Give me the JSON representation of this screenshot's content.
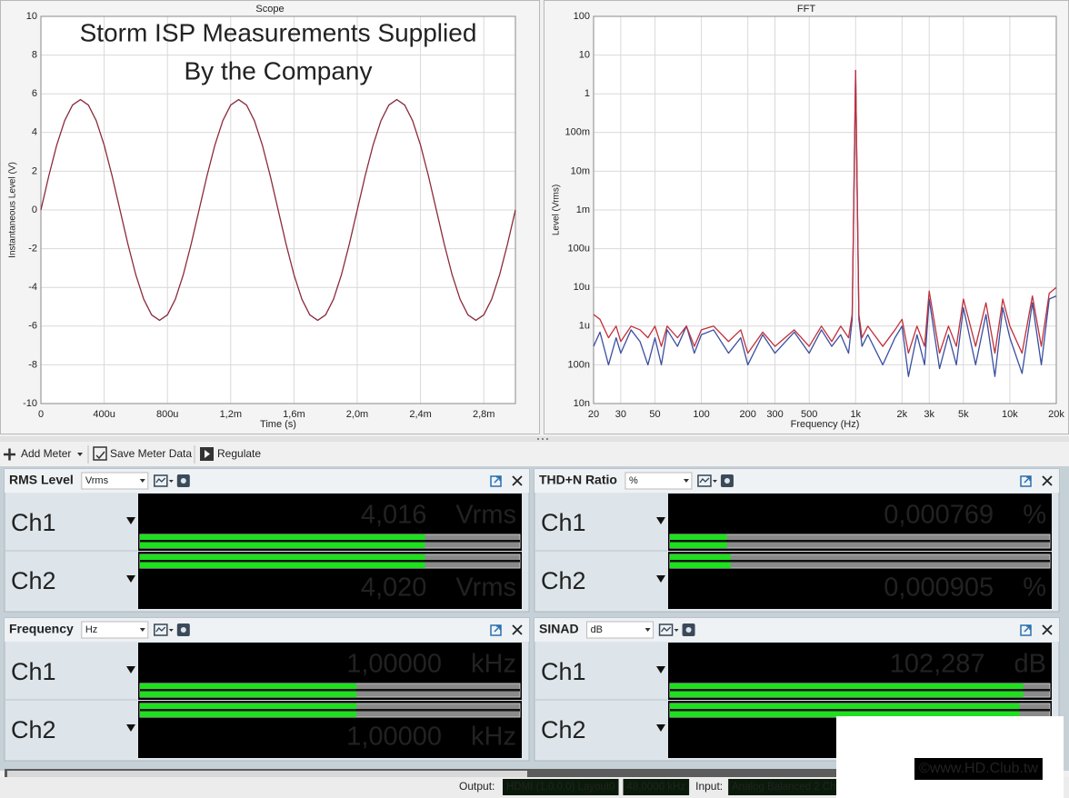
{
  "chart_data": [
    {
      "type": "line",
      "title": "Scope",
      "x_label": "Time (s)",
      "y_label": "Instantaneous Level (V)",
      "annotation": [
        "Storm ISP Measurements Supplied",
        "By the Company"
      ],
      "annotation_color": "#e8141c",
      "x": [
        0,
        5e-05,
        0.0001,
        0.00015,
        0.0002,
        0.00025,
        0.0003,
        0.00035,
        0.0004,
        0.00045,
        0.0005,
        0.00055,
        0.0006,
        0.00065,
        0.0007,
        0.00075,
        0.0008,
        0.00085,
        0.0009,
        0.00095,
        0.001,
        0.00105,
        0.0011,
        0.00115,
        0.0012,
        0.00125,
        0.0013,
        0.00135,
        0.0014,
        0.00145,
        0.0015,
        0.00155,
        0.0016,
        0.00165,
        0.0017,
        0.00175,
        0.0018,
        0.00185,
        0.0019,
        0.00195,
        0.002,
        0.00205,
        0.0021,
        0.00215,
        0.0022,
        0.00225,
        0.0023,
        0.00235,
        0.0024,
        0.00245,
        0.0025,
        0.00255,
        0.0026,
        0.00265,
        0.0027,
        0.00275,
        0.0028,
        0.00285,
        0.0029,
        0.00295,
        0.003
      ],
      "values": [
        0,
        1.76,
        3.35,
        4.61,
        5.42,
        5.7,
        5.42,
        4.61,
        3.35,
        1.76,
        0,
        -1.76,
        -3.35,
        -4.61,
        -5.42,
        -5.7,
        -5.42,
        -4.61,
        -3.35,
        -1.76,
        0,
        1.76,
        3.35,
        4.61,
        5.42,
        5.7,
        5.42,
        4.61,
        3.35,
        1.76,
        0,
        -1.76,
        -3.35,
        -4.61,
        -5.42,
        -5.7,
        -5.42,
        -4.61,
        -3.35,
        -1.76,
        0,
        1.76,
        3.35,
        4.61,
        5.42,
        5.7,
        5.42,
        4.61,
        3.35,
        1.76,
        0,
        -1.76,
        -3.35,
        -4.61,
        -5.42,
        -5.7,
        -5.42,
        -4.61,
        -3.35,
        -1.76,
        0
      ],
      "color": "#8b2a3a",
      "xlim": [
        0,
        0.003
      ],
      "ylim": [
        -10,
        10
      ],
      "xticks": [
        0,
        {
          "value": 0.0004,
          "label": "400u"
        },
        {
          "value": 0.0008,
          "label": "800u"
        },
        {
          "value": 0.0012,
          "label": "1,2m"
        },
        {
          "value": 0.0016,
          "label": "1,6m"
        },
        {
          "value": 0.002,
          "label": "2,0m"
        },
        {
          "value": 0.0024,
          "label": "2,4m"
        },
        {
          "value": 0.0028,
          "label": "2,8m"
        }
      ],
      "yticks": [
        -10,
        -8,
        -6,
        -4,
        -2,
        0,
        2,
        4,
        6,
        8,
        10
      ],
      "grid": true
    },
    {
      "type": "line",
      "title": "FFT",
      "x_label": "Frequency (Hz)",
      "y_label": "Level (Vrms)",
      "x": [
        20,
        22,
        25,
        28,
        30,
        35,
        40,
        45,
        50,
        55,
        60,
        70,
        80,
        90,
        100,
        120,
        150,
        180,
        200,
        250,
        300,
        400,
        500,
        600,
        700,
        800,
        900,
        950,
        1000,
        1050,
        1100,
        1200,
        1500,
        1800,
        2000,
        2200,
        2500,
        2800,
        3000,
        3500,
        4000,
        4500,
        5000,
        6000,
        7000,
        8000,
        9000,
        10000,
        12000,
        14000,
        16000,
        18000,
        20000
      ],
      "series": [
        {
          "color": "#3a4fa0",
          "values": [
            3e-07,
            7e-07,
            1e-07,
            5e-07,
            2e-07,
            8e-07,
            4e-07,
            1e-07,
            5e-07,
            1e-07,
            8e-07,
            3e-07,
            1e-06,
            2e-07,
            6e-07,
            8e-07,
            2e-07,
            5e-07,
            1e-07,
            6e-07,
            2e-07,
            7e-07,
            2e-07,
            8e-07,
            3e-07,
            6e-07,
            2e-07,
            1.5e-06,
            4,
            1.5e-06,
            3e-07,
            6e-07,
            1e-07,
            5e-07,
            1e-06,
            5e-08,
            6e-07,
            1e-07,
            5e-06,
            8e-08,
            6e-07,
            1e-07,
            3e-06,
            1e-07,
            2e-06,
            5e-08,
            3e-06,
            5e-07,
            6e-08,
            4e-06,
            1e-07,
            5e-06,
            6e-06
          ]
        },
        {
          "color": "#c0303a",
          "values": [
            2e-06,
            1.5e-06,
            5e-07,
            1e-06,
            4e-07,
            1e-06,
            8e-07,
            5e-07,
            1e-06,
            3e-07,
            1e-06,
            5e-07,
            1e-06,
            3e-07,
            8e-07,
            1e-06,
            4e-07,
            8e-07,
            2e-07,
            7e-07,
            3e-07,
            8e-07,
            3e-07,
            1e-06,
            4e-07,
            1e-06,
            5e-07,
            2e-06,
            4,
            2e-06,
            5e-07,
            1e-06,
            3e-07,
            8e-07,
            1.5e-06,
            2e-07,
            1e-06,
            3e-07,
            8e-06,
            2e-07,
            1e-06,
            3e-07,
            5e-06,
            3e-07,
            4e-06,
            2e-07,
            5e-06,
            1e-06,
            2e-07,
            6e-06,
            3e-07,
            7e-06,
            1e-05
          ]
        }
      ],
      "xscale": "log",
      "yscale": "log",
      "xlim": [
        20,
        20000
      ],
      "ylim": [
        1e-08,
        100
      ],
      "xticks": [
        20,
        30,
        50,
        100,
        200,
        300,
        500,
        {
          "value": 1000,
          "label": "1k"
        },
        {
          "value": 2000,
          "label": "2k"
        },
        {
          "value": 3000,
          "label": "3k"
        },
        {
          "value": 5000,
          "label": "5k"
        },
        {
          "value": 10000,
          "label": "10k"
        },
        {
          "value": 20000,
          "label": "20k"
        }
      ],
      "yticks": [
        {
          "value": 1e-08,
          "label": "10n"
        },
        {
          "value": 1e-07,
          "label": "100n"
        },
        {
          "value": 1e-06,
          "label": "1u"
        },
        {
          "value": 1e-05,
          "label": "10u"
        },
        {
          "value": 0.0001,
          "label": "100u"
        },
        {
          "value": 0.001,
          "label": "1m"
        },
        {
          "value": 0.01,
          "label": "10m"
        },
        {
          "value": 0.1,
          "label": "100m"
        },
        1,
        10,
        100
      ],
      "grid": true
    }
  ],
  "toolbar": [
    "Add Meter",
    "Save Meter Data",
    "Regulate"
  ],
  "meters": [
    {
      "title": "RMS Level",
      "unit": "Vrms",
      "channels": [
        {
          "name": "Ch1",
          "value": "4,016",
          "unit": "Vrms",
          "level": 75
        },
        {
          "name": "Ch2",
          "value": "4,020",
          "unit": "Vrms",
          "level": 75
        }
      ]
    },
    {
      "title": "THD+N Ratio",
      "unit": "%",
      "channels": [
        {
          "name": "Ch1",
          "value": "0,000769",
          "unit": "%",
          "level": 15
        },
        {
          "name": "Ch2",
          "value": "0,000905",
          "unit": "%",
          "level": 16
        }
      ]
    },
    {
      "title": "Frequency",
      "unit": "Hz",
      "channels": [
        {
          "name": "Ch1",
          "value": "1,00000",
          "unit": "kHz",
          "level": 57
        },
        {
          "name": "Ch2",
          "value": "1,00000",
          "unit": "kHz",
          "level": 57
        }
      ]
    },
    {
      "title": "SINAD",
      "unit": "dB",
      "channels": [
        {
          "name": "Ch1",
          "value": "102,287",
          "unit": "dB",
          "level": 93
        },
        {
          "name": "Ch2",
          "level": 92
        }
      ]
    }
  ],
  "status": {
    "output_label": "Output:",
    "output": [
      "HDMI (1.0.0.0)  Layout0",
      "48,0000 kHz"
    ],
    "input_label": "Input:",
    "input": [
      "Analog Balanced 2 Ch,"
    ]
  },
  "watermark": "©www.HD.Club.tw"
}
